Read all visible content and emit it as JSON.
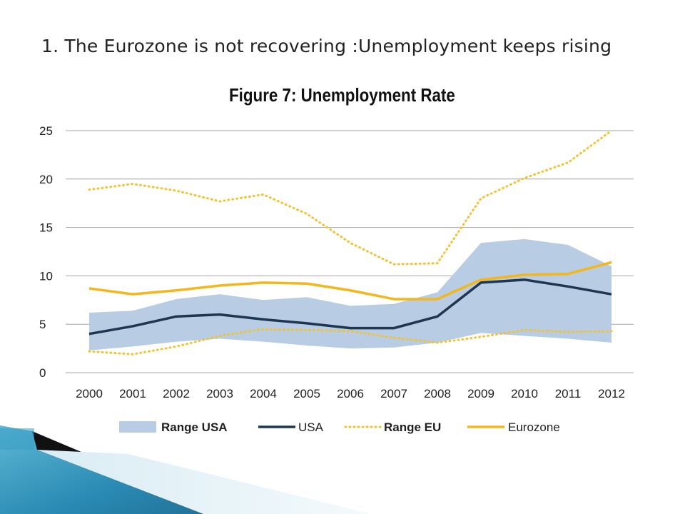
{
  "slide": {
    "title": "1. The Eurozone is not recovering :Unemployment keeps rising"
  },
  "chart_data": {
    "type": "line",
    "title": "Figure 7: Unemployment Rate",
    "xlabel": "",
    "ylabel": "",
    "x": [
      "2000",
      "2001",
      "2002",
      "2003",
      "2004",
      "2005",
      "2006",
      "2007",
      "2008",
      "2009",
      "2010",
      "2011",
      "2012"
    ],
    "ylim": [
      0,
      25
    ],
    "yticks": [
      0,
      5,
      10,
      15,
      20,
      25
    ],
    "grid": true,
    "legend_position": "bottom",
    "series": [
      {
        "name": "Range USA",
        "kind": "band",
        "color": "#b8cce4",
        "upper": [
          6.2,
          6.4,
          7.6,
          8.1,
          7.5,
          7.8,
          6.9,
          7.1,
          8.3,
          13.4,
          13.8,
          13.2,
          11.0
        ],
        "lower": [
          2.3,
          2.7,
          3.2,
          3.5,
          3.2,
          2.8,
          2.5,
          2.6,
          3.1,
          4.1,
          3.8,
          3.5,
          3.1
        ]
      },
      {
        "name": "USA",
        "kind": "line",
        "color": "#1f3651",
        "values": [
          4.0,
          4.8,
          5.8,
          6.0,
          5.5,
          5.1,
          4.6,
          4.6,
          5.8,
          9.3,
          9.6,
          8.9,
          8.1
        ]
      },
      {
        "name": "Range EU",
        "kind": "dotted-range",
        "color": "#f2c232",
        "upper": [
          18.9,
          19.5,
          18.8,
          17.7,
          18.4,
          16.4,
          13.4,
          11.2,
          11.3,
          18.0,
          20.1,
          21.7,
          25.0
        ],
        "lower": [
          2.2,
          1.9,
          2.7,
          3.8,
          4.5,
          4.4,
          4.3,
          3.6,
          3.1,
          3.7,
          4.4,
          4.2,
          4.3
        ]
      },
      {
        "name": "Eurozone",
        "kind": "line",
        "color": "#f2b71c",
        "values": [
          8.7,
          8.1,
          8.5,
          9.0,
          9.3,
          9.2,
          8.5,
          7.6,
          7.6,
          9.6,
          10.1,
          10.2,
          11.4
        ]
      }
    ]
  }
}
